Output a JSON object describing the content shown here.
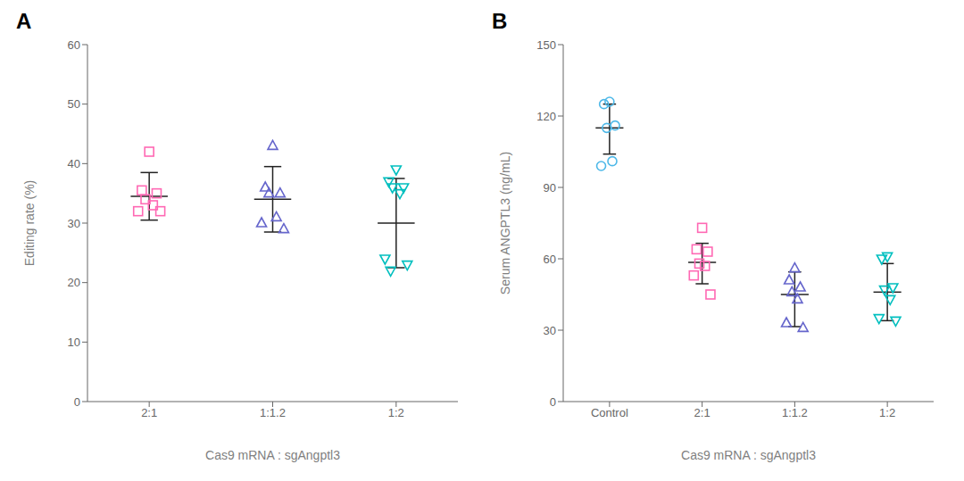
{
  "chart_data": [
    {
      "type": "scatter",
      "title": "A",
      "x_label": "Cas9 mRNA : sgAngptl3",
      "y_label": "Editing rate (%)",
      "ylim": [
        0,
        60
      ],
      "yticks": [
        0,
        10,
        20,
        30,
        40,
        50,
        60
      ],
      "grid": false,
      "series": [
        {
          "name": "2:1",
          "color": "#FF69B4",
          "marker": "square",
          "values": [
            42,
            35.5,
            35,
            34,
            33,
            32,
            32
          ],
          "mean": 34.5,
          "sd_upper": 38.5,
          "sd_lower": 30.5
        },
        {
          "name": "1:1.2",
          "color": "#6666CC",
          "marker": "triangle_up",
          "values": [
            43,
            36,
            35,
            35,
            31,
            30,
            29
          ],
          "mean": 34.0,
          "sd_upper": 39.5,
          "sd_lower": 28.5
        },
        {
          "name": "1:2",
          "color": "#00BFBF",
          "marker": "triangle_down",
          "values": [
            39,
            37,
            36,
            36,
            35,
            24,
            23,
            22
          ],
          "mean": 30.0,
          "sd_upper": 37.5,
          "sd_lower": 22.5
        }
      ]
    },
    {
      "type": "scatter",
      "title": "B",
      "x_label": "Cas9 mRNA : sgAngptl3",
      "y_label": "Serum ANGPTL3 (ng/mL)",
      "ylim": [
        0,
        150
      ],
      "yticks": [
        0,
        30,
        60,
        90,
        120,
        150
      ],
      "grid": false,
      "series": [
        {
          "name": "Control",
          "color": "#4DB8E8",
          "marker": "circle",
          "values": [
            126,
            125,
            116,
            115,
            101,
            99
          ],
          "mean": 115,
          "sd_upper": 125.0,
          "sd_lower": 104.0
        },
        {
          "name": "2:1",
          "color": "#FF69B4",
          "marker": "square",
          "values": [
            73,
            64,
            63,
            58,
            57,
            53,
            45
          ],
          "mean": 58.5,
          "sd_upper": 66.5,
          "sd_lower": 49.5
        },
        {
          "name": "1:1.2",
          "color": "#6666CC",
          "marker": "triangle_up",
          "values": [
            56,
            51,
            48,
            46,
            43,
            33,
            31
          ],
          "mean": 45.0,
          "sd_upper": 54.5,
          "sd_lower": 31.5
        },
        {
          "name": "1:2",
          "color": "#00BFBF",
          "marker": "triangle_down",
          "values": [
            61,
            60,
            48,
            47,
            43,
            35,
            34
          ],
          "mean": 46.0,
          "sd_upper": 58.0,
          "sd_lower": 34.0
        }
      ]
    }
  ]
}
